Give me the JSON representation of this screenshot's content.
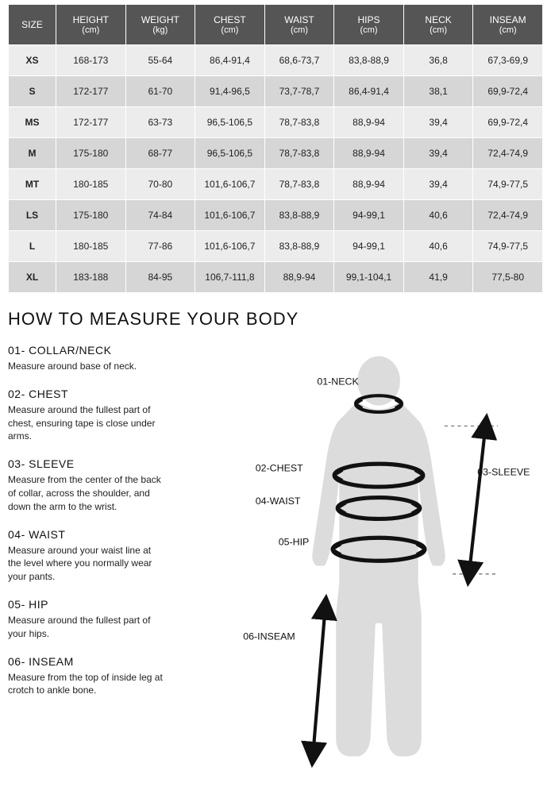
{
  "table": {
    "columns": [
      {
        "top": "SIZE",
        "unit": ""
      },
      {
        "top": "HEIGHT",
        "unit": "(cm)"
      },
      {
        "top": "WEIGHT",
        "unit": "(kg)"
      },
      {
        "top": "CHEST",
        "unit": "(cm)"
      },
      {
        "top": "WAIST",
        "unit": "(cm)"
      },
      {
        "top": "HIPS",
        "unit": "(cm)"
      },
      {
        "top": "NECK",
        "unit": "(cm)"
      },
      {
        "top": "INSEAM",
        "unit": "(cm)"
      }
    ],
    "rows": [
      [
        "XS",
        "168-173",
        "55-64",
        "86,4-91,4",
        "68,6-73,7",
        "83,8-88,9",
        "36,8",
        "67,3-69,9"
      ],
      [
        "S",
        "172-177",
        "61-70",
        "91,4-96,5",
        "73,7-78,7",
        "86,4-91,4",
        "38,1",
        "69,9-72,4"
      ],
      [
        "MS",
        "172-177",
        "63-73",
        "96,5-106,5",
        "78,7-83,8",
        "88,9-94",
        "39,4",
        "69,9-72,4"
      ],
      [
        "M",
        "175-180",
        "68-77",
        "96,5-106,5",
        "78,7-83,8",
        "88,9-94",
        "39,4",
        "72,4-74,9"
      ],
      [
        "MT",
        "180-185",
        "70-80",
        "101,6-106,7",
        "78,7-83,8",
        "88,9-94",
        "39,4",
        "74,9-77,5"
      ],
      [
        "LS",
        "175-180",
        "74-84",
        "101,6-106,7",
        "83,8-88,9",
        "94-99,1",
        "40,6",
        "72,4-74,9"
      ],
      [
        "L",
        "180-185",
        "77-86",
        "101,6-106,7",
        "83,8-88,9",
        "94-99,1",
        "40,6",
        "74,9-77,5"
      ],
      [
        "XL",
        "183-188",
        "84-95",
        "106,7-111,8",
        "88,9-94",
        "99,1-104,1",
        "41,9",
        "77,5-80"
      ]
    ],
    "header_bg": "#555555",
    "header_fg": "#ffffff",
    "row_odd_bg": "#ececec",
    "row_even_bg": "#d6d6d6",
    "border_color": "#ffffff"
  },
  "section_title": "HOW TO MEASURE YOUR BODY",
  "instructions": [
    {
      "title": "01- COLLAR/NECK",
      "text": "Measure around base of neck."
    },
    {
      "title": "02- CHEST",
      "text": "Measure around the fullest part of chest, ensuring tape is close under arms."
    },
    {
      "title": "03- SLEEVE",
      "text": "Measure from the center of the back of collar, across the shoulder, and down the arm to the wrist."
    },
    {
      "title": "04- WAIST",
      "text": "Measure around your waist line at the level where you normally wear your pants."
    },
    {
      "title": "05- HIP",
      "text": "Measure around the fullest part of your hips."
    },
    {
      "title": "06- INSEAM",
      "text": "Measure from the top of inside leg at crotch to ankle bone."
    }
  ],
  "diagram_labels": {
    "neck": "01-NECK",
    "chest": "02-CHEST",
    "sleeve": "03-SLEEVE",
    "waist": "04-WAIST",
    "hip": "05-HIP",
    "inseam": "06-INSEAM"
  },
  "diagram_colors": {
    "silhouette": "#dcdcdc",
    "tape": "#111111",
    "guide": "#888888"
  }
}
